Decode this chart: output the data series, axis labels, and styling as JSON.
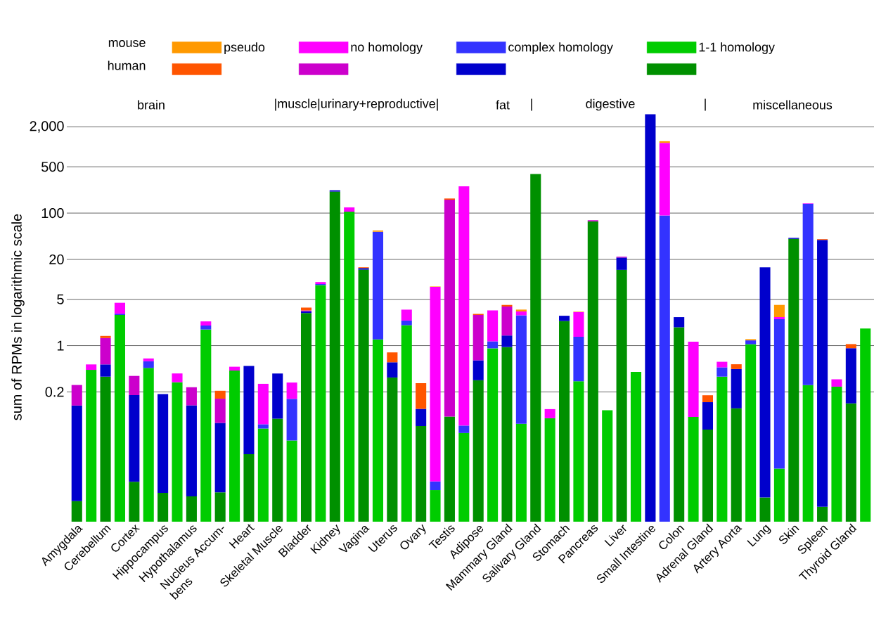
{
  "chart_data": {
    "type": "bar",
    "stacked": true,
    "ylabel": "sum of RPMs in logarithmic scale",
    "categories": [
      "Amygdala",
      null,
      "Cerebellum",
      null,
      "Cortex",
      null,
      "Hippocampus",
      null,
      "Hypothalamus",
      null,
      "Nucleus Accum- bens",
      null,
      "Heart",
      null,
      "Skeletal Muscle",
      null,
      "Bladder",
      null,
      "Kidney",
      null,
      "Vagina",
      null,
      "Uterus",
      null,
      "Ovary",
      null,
      "Testis",
      null,
      "Adipose",
      null,
      "Mammary Gland",
      null,
      "Salivary Gland",
      null,
      "Stomach",
      null,
      "Pancreas",
      null,
      "Liver",
      null,
      "Small Intestine",
      null,
      "Colon",
      null,
      "Adrenal Gland",
      null,
      "Artery Aorta",
      null,
      "Lung",
      null,
      "Skin",
      null,
      "Spleen",
      null,
      "Thyroid Gland",
      null
    ],
    "series": [
      {
        "name": "1-1 homology",
        "colors": [
          "#009000",
          "#00cc00",
          "#009000",
          "#00cc00",
          "#009000",
          "#00cc00",
          "#009000",
          "#00cc00",
          "#009000",
          "#00cc00",
          "#009000",
          "#00cc00",
          "#009000",
          "#00cc00",
          "#009000",
          "#00cc00",
          "#009000",
          "#00cc00",
          "#009000",
          "#00cc00",
          "#009000",
          "#00cc00",
          "#009000",
          "#00cc00",
          "#009000",
          "#00cc00",
          "#009000",
          "#00cc00",
          "#009000",
          "#00cc00",
          "#009000",
          "#00cc00",
          "#009000",
          "#00cc00",
          "#009000",
          "#00cc00",
          "#009000",
          "#00cc00",
          "#009000",
          "#00cc00",
          "#009000",
          "#00cc00",
          "#009000",
          "#00cc00",
          "#009000",
          "#00cc00",
          "#009000",
          "#00cc00",
          "#009000",
          "#00cc00",
          "#009000",
          "#00cc00",
          "#009000",
          "#00cc00",
          "#009000",
          "#00cc00"
        ],
        "values": [
          0.0045,
          0.43,
          0.34,
          2.9,
          0.0088,
          0.46,
          0.006,
          0.28,
          0.0053,
          1.75,
          0.0061,
          0.42,
          0.023,
          0.056,
          0.079,
          0.037,
          3.1,
          8.2,
          211,
          105,
          14,
          1.24,
          0.33,
          2.03,
          0.061,
          0.0066,
          0.085,
          0.048,
          0.3,
          0.91,
          0.95,
          0.066,
          388,
          0.08,
          2.35,
          0.29,
          75,
          0.106,
          13.9,
          0.4,
          null,
          null,
          1.89,
          0.084,
          0.054,
          0.34,
          0.113,
          1.05,
          0.0051,
          0.0139,
          40.8,
          0.253,
          0.0037,
          0.24,
          0.134,
          1.81
        ]
      },
      {
        "name": "complex homology",
        "colors": [
          "#0000cc",
          "#3333ff",
          "#0000cc",
          "#3333ff",
          "#0000cc",
          "#3333ff",
          "#0000cc",
          "#3333ff",
          "#0000cc",
          "#3333ff",
          "#0000cc",
          "#3333ff",
          "#0000cc",
          "#3333ff",
          "#0000cc",
          "#3333ff",
          "#0000cc",
          "#3333ff",
          "#0000cc",
          "#3333ff",
          "#0000cc",
          "#3333ff",
          "#0000cc",
          "#3333ff",
          "#0000cc",
          "#3333ff",
          "#0000cc",
          "#3333ff",
          "#0000cc",
          "#3333ff",
          "#0000cc",
          "#3333ff",
          "#0000cc",
          "#3333ff",
          "#0000cc",
          "#3333ff",
          "#0000cc",
          "#3333ff",
          "#0000cc",
          "#3333ff",
          "#0000cc",
          "#3333ff",
          "#0000cc",
          "#3333ff",
          "#0000cc",
          "#3333ff",
          "#0000cc",
          "#3333ff",
          "#0000cc",
          "#3333ff",
          "#0000cc",
          "#3333ff",
          "#0000cc",
          "#3333ff",
          "#0000cc",
          "#3333ff"
        ],
        "values": [
          0.12,
          null,
          0.18,
          0.13,
          0.17,
          0.12,
          0.18,
          null,
          0.12,
          0.26,
          0.062,
          null,
          0.47,
          0.009,
          0.3,
          0.12,
          0.2,
          0.3,
          10,
          null,
          0.8,
          51,
          0.23,
          0.36,
          0.05,
          0.0023,
          null,
          0.014,
          0.3,
          0.25,
          0.47,
          2.8,
          null,
          null,
          0.47,
          1.07,
          null,
          null,
          7.4,
          null,
          3100,
          92,
          0.8,
          null,
          0.086,
          0.13,
          0.33,
          0.15,
          15.2,
          2.49,
          1.5,
          138,
          39.4,
          null,
          0.78,
          null
        ]
      },
      {
        "name": "no homology",
        "colors": [
          "#cc00cc",
          "#ff00ff",
          "#cc00cc",
          "#ff00ff",
          "#cc00cc",
          "#ff00ff",
          "#cc00cc",
          "#ff00ff",
          "#cc00cc",
          "#ff00ff",
          "#cc00cc",
          "#ff00ff",
          "#cc00cc",
          "#ff00ff",
          "#cc00cc",
          "#ff00ff",
          "#cc00cc",
          "#ff00ff",
          "#cc00cc",
          "#ff00ff",
          "#cc00cc",
          "#ff00ff",
          "#cc00cc",
          "#ff00ff",
          "#cc00cc",
          "#ff00ff",
          "#cc00cc",
          "#ff00ff",
          "#cc00cc",
          "#ff00ff",
          "#cc00cc",
          "#ff00ff",
          "#cc00cc",
          "#ff00ff",
          "#cc00cc",
          "#ff00ff",
          "#cc00cc",
          "#ff00ff",
          "#cc00cc",
          "#ff00ff",
          "#cc00cc",
          "#ff00ff",
          "#cc00cc",
          "#ff00ff",
          "#cc00cc",
          "#ff00ff",
          "#cc00cc",
          "#ff00ff",
          "#cc00cc",
          "#ff00ff",
          "#cc00cc",
          "#ff00ff",
          "#cc00cc",
          "#ff00ff",
          "#cc00cc",
          "#ff00ff"
        ],
        "values": [
          0.13,
          0.09,
          0.78,
          1.4,
          0.17,
          0.06,
          null,
          0.1,
          0.11,
          0.31,
          0.09,
          0.06,
          null,
          0.2,
          null,
          0.12,
          0.1,
          0.6,
          null,
          17,
          null,
          null,
          null,
          1.1,
          null,
          7.7,
          159,
          253,
          2.3,
          2.24,
          2.47,
          0.41,
          null,
          0.03,
          null,
          1.85,
          3,
          null,
          0.7,
          null,
          null,
          1056,
          null,
          1.06,
          null,
          0.1,
          null,
          null,
          null,
          0.19,
          null,
          2,
          null,
          0.07,
          null,
          null
        ]
      },
      {
        "name": "pseudo",
        "colors": [
          "#ff5500",
          "#ff9900",
          "#ff5500",
          "#ff9900",
          "#ff5500",
          "#ff9900",
          "#ff5500",
          "#ff9900",
          "#ff5500",
          "#ff9900",
          "#ff5500",
          "#ff9900",
          "#ff5500",
          "#ff9900",
          "#ff5500",
          "#ff9900",
          "#ff5500",
          "#ff9900",
          "#ff5500",
          "#ff9900",
          "#ff5500",
          "#ff9900",
          "#ff5500",
          "#ff9900",
          "#ff5500",
          "#ff9900",
          "#ff5500",
          "#ff9900",
          "#ff5500",
          "#ff9900",
          "#ff5500",
          "#ff9900",
          "#ff5500",
          "#ff9900",
          "#ff5500",
          "#ff9900",
          "#ff5500",
          "#ff9900",
          "#ff5500",
          "#ff9900",
          "#ff5500",
          "#ff9900",
          "#ff5500",
          "#ff9900",
          "#ff5500",
          "#ff9900",
          "#ff5500",
          "#ff9900",
          "#ff5500",
          "#ff9900",
          "#ff5500",
          "#ff9900",
          "#ff5500",
          "#ff9900",
          "#ff5500",
          "#ff9900"
        ],
        "values": [
          null,
          null,
          0.1,
          null,
          null,
          null,
          null,
          null,
          null,
          null,
          0.05,
          null,
          null,
          null,
          null,
          null,
          0.35,
          null,
          null,
          null,
          0.4,
          2.5,
          0.23,
          null,
          0.16,
          0.1,
          7,
          null,
          0.11,
          null,
          0.22,
          0.22,
          null,
          null,
          null,
          0.05,
          null,
          null,
          null,
          null,
          null,
          70,
          null,
          null,
          0.038,
          null,
          0.08,
          0.05,
          null,
          1.42,
          null,
          null,
          1,
          null,
          0.14,
          null
        ]
      }
    ],
    "log": "y",
    "ylim": [
      0.0022,
      3300
    ],
    "yticks": [
      0.2,
      1,
      5,
      20,
      100,
      500,
      {
        "value": 2000,
        "label": "2,000"
      }
    ],
    "grid": "y",
    "legend": "top",
    "annotations": [
      "mouse",
      "human",
      "brain",
      "|muscle|urinary+reproductive|",
      "fat",
      "|",
      "digestive",
      "|",
      "miscellaneous"
    ]
  }
}
